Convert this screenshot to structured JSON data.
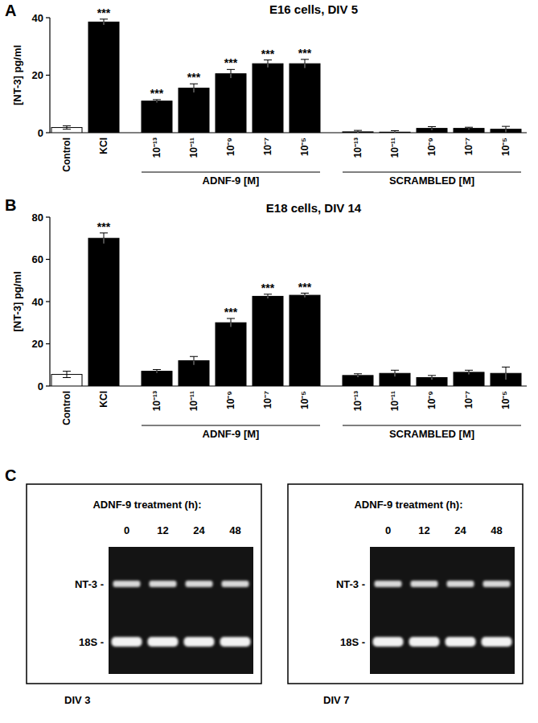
{
  "chart_data": [
    {
      "type": "bar",
      "panel_label": "A",
      "title": "E16 cells, DIV 5",
      "y_label": "[NT-3] pg/ml",
      "categories": [
        "Control",
        "KCl",
        "10⁻¹³",
        "10⁻¹¹",
        "10⁻⁹",
        "10⁻⁷",
        "10⁻⁵",
        "10⁻¹³",
        "10⁻¹¹",
        "10⁻⁹",
        "10⁻⁷",
        "10⁻⁵"
      ],
      "values": [
        1.8,
        38.5,
        11,
        15.5,
        20.5,
        24,
        24,
        0.3,
        0.2,
        1.5,
        1.5,
        1.2
      ],
      "errors": [
        0.6,
        1,
        0.5,
        1.5,
        1.5,
        1.3,
        1.5,
        0.5,
        0.5,
        0.6,
        0.4,
        1
      ],
      "colors": [
        "#ffffff",
        "#000000",
        "#000000",
        "#000000",
        "#000000",
        "#000000",
        "#000000",
        "#000000",
        "#000000",
        "#000000",
        "#000000",
        "#000000"
      ],
      "significance": [
        null,
        "***",
        "***",
        "***",
        "***",
        "***",
        "***",
        null,
        null,
        null,
        null,
        null
      ],
      "x_groups": [
        {
          "label": "ADNF-9 [M]",
          "from": 2,
          "to": 6
        },
        {
          "label": "SCRAMBLED [M]",
          "from": 7,
          "to": 11
        }
      ],
      "ylim": [
        0,
        40
      ],
      "yticks": [
        0,
        20,
        40
      ],
      "grid": false
    },
    {
      "type": "bar",
      "panel_label": "B",
      "title": "E18 cells, DIV 14",
      "y_label": "[NT-3] pg/ml",
      "categories": [
        "Control",
        "KCl",
        "10⁻¹³",
        "10⁻¹¹",
        "10⁻⁹",
        "10⁻⁷",
        "10⁻⁵",
        "10⁻¹³",
        "10⁻¹¹",
        "10⁻⁹",
        "10⁻⁷",
        "10⁻⁵"
      ],
      "values": [
        5.5,
        70,
        7,
        12,
        30,
        42.5,
        43,
        5,
        6,
        4,
        6.5,
        6
      ],
      "errors": [
        1.5,
        2.5,
        0.8,
        2,
        2,
        1,
        1,
        0.8,
        1.5,
        1,
        1,
        3
      ],
      "colors": [
        "#ffffff",
        "#000000",
        "#000000",
        "#000000",
        "#000000",
        "#000000",
        "#000000",
        "#000000",
        "#000000",
        "#000000",
        "#000000",
        "#000000"
      ],
      "significance": [
        null,
        "***",
        null,
        null,
        "***",
        "***",
        "***",
        null,
        null,
        null,
        null,
        null
      ],
      "x_groups": [
        {
          "label": "ADNF-9 [M]",
          "from": 2,
          "to": 6
        },
        {
          "label": "SCRAMBLED [M]",
          "from": 7,
          "to": 11
        }
      ],
      "ylim": [
        0,
        80
      ],
      "yticks": [
        0,
        20,
        40,
        60,
        80
      ],
      "grid": false
    }
  ],
  "panel_c": {
    "panel_label": "C",
    "gels": [
      {
        "title": "ADNF-9 treatment (h):",
        "lanes": [
          "0",
          "12",
          "24",
          "48"
        ],
        "bands": [
          "NT-3 -",
          "18S -"
        ],
        "caption": "DIV 3"
      },
      {
        "title": "ADNF-9 treatment (h):",
        "lanes": [
          "0",
          "12",
          "24",
          "48"
        ],
        "bands": [
          "NT-3 -",
          "18S -"
        ],
        "caption": "DIV 7"
      }
    ]
  }
}
